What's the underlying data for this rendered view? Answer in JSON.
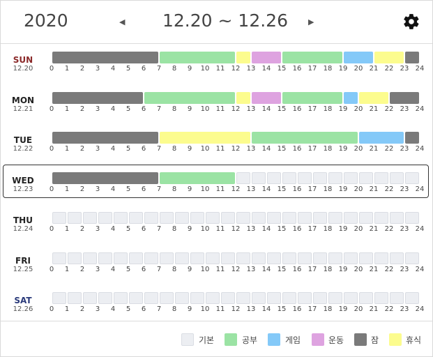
{
  "header": {
    "year": "2020",
    "prev_label": "◀",
    "next_label": "▶",
    "range": "12.20 ~ 12.26"
  },
  "categories": {
    "base": {
      "label": "기본",
      "color": "#eceef2"
    },
    "study": {
      "label": "공부",
      "color": "#9be3a4"
    },
    "game": {
      "label": "게임",
      "color": "#84c9f8"
    },
    "sport": {
      "label": "운동",
      "color": "#dea3e0"
    },
    "sleep": {
      "label": "잠",
      "color": "#7a7a7a"
    },
    "rest": {
      "label": "휴식",
      "color": "#fcfc8e"
    }
  },
  "legend_order": [
    "base",
    "study",
    "game",
    "sport",
    "sleep",
    "rest"
  ],
  "ticks": [
    "0",
    "1",
    "2",
    "3",
    "4",
    "5",
    "6",
    "7",
    "8",
    "9",
    "10",
    "11",
    "12",
    "13",
    "14",
    "15",
    "16",
    "17",
    "18",
    "19",
    "20",
    "21",
    "22",
    "23",
    "24"
  ],
  "days": [
    {
      "name": "SUN",
      "date": "12.20",
      "name_color": "#8b2a2a",
      "today": false,
      "blocks": [
        {
          "start": 0,
          "end": 7,
          "cat": "sleep"
        },
        {
          "start": 7,
          "end": 12,
          "cat": "study"
        },
        {
          "start": 12,
          "end": 13,
          "cat": "rest"
        },
        {
          "start": 13,
          "end": 15,
          "cat": "sport"
        },
        {
          "start": 15,
          "end": 19,
          "cat": "study"
        },
        {
          "start": 19,
          "end": 21,
          "cat": "game"
        },
        {
          "start": 21,
          "end": 23,
          "cat": "rest"
        },
        {
          "start": 23,
          "end": 24,
          "cat": "sleep"
        }
      ]
    },
    {
      "name": "MON",
      "date": "12.21",
      "name_color": "#222222",
      "today": false,
      "blocks": [
        {
          "start": 0,
          "end": 6,
          "cat": "sleep"
        },
        {
          "start": 6,
          "end": 12,
          "cat": "study"
        },
        {
          "start": 12,
          "end": 13,
          "cat": "rest"
        },
        {
          "start": 13,
          "end": 15,
          "cat": "sport"
        },
        {
          "start": 15,
          "end": 19,
          "cat": "study"
        },
        {
          "start": 19,
          "end": 20,
          "cat": "game"
        },
        {
          "start": 20,
          "end": 22,
          "cat": "rest"
        },
        {
          "start": 22,
          "end": 24,
          "cat": "sleep"
        }
      ]
    },
    {
      "name": "TUE",
      "date": "12.22",
      "name_color": "#222222",
      "today": false,
      "blocks": [
        {
          "start": 0,
          "end": 7,
          "cat": "sleep"
        },
        {
          "start": 7,
          "end": 13,
          "cat": "rest"
        },
        {
          "start": 13,
          "end": 20,
          "cat": "study"
        },
        {
          "start": 20,
          "end": 23,
          "cat": "game"
        },
        {
          "start": 23,
          "end": 24,
          "cat": "sleep"
        }
      ]
    },
    {
      "name": "WED",
      "date": "12.23",
      "name_color": "#222222",
      "today": true,
      "blocks": [
        {
          "start": 0,
          "end": 7,
          "cat": "sleep"
        },
        {
          "start": 7,
          "end": 12,
          "cat": "study"
        }
      ]
    },
    {
      "name": "THU",
      "date": "12.24",
      "name_color": "#222222",
      "today": false,
      "blocks": []
    },
    {
      "name": "FRI",
      "date": "12.25",
      "name_color": "#222222",
      "today": false,
      "blocks": []
    },
    {
      "name": "SAT",
      "date": "12.26",
      "name_color": "#2a3a7a",
      "today": false,
      "blocks": []
    }
  ]
}
